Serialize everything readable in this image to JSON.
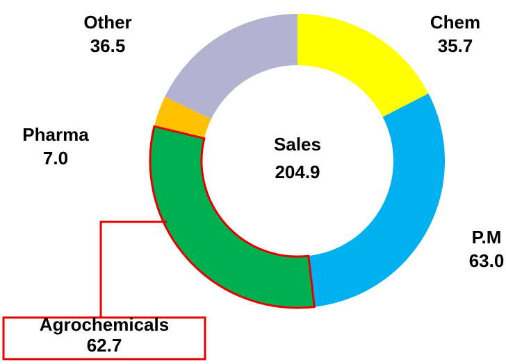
{
  "chart_data": {
    "type": "pie",
    "center_label": "Sales",
    "total": 204.9,
    "categories": [
      "Chem",
      "P.M",
      "Agrochemicals",
      "Pharma",
      "Other"
    ],
    "values": [
      35.7,
      63.0,
      62.7,
      7.0,
      36.5
    ],
    "value_labels": [
      "35.7",
      "63.0",
      "62.7",
      "7.0",
      "36.5"
    ],
    "colors": [
      "#ffff00",
      "#00b0f0",
      "#00b050",
      "#ffc000",
      "#b3b3d1"
    ],
    "highlight": 2,
    "highlight_color": "#e30000"
  }
}
